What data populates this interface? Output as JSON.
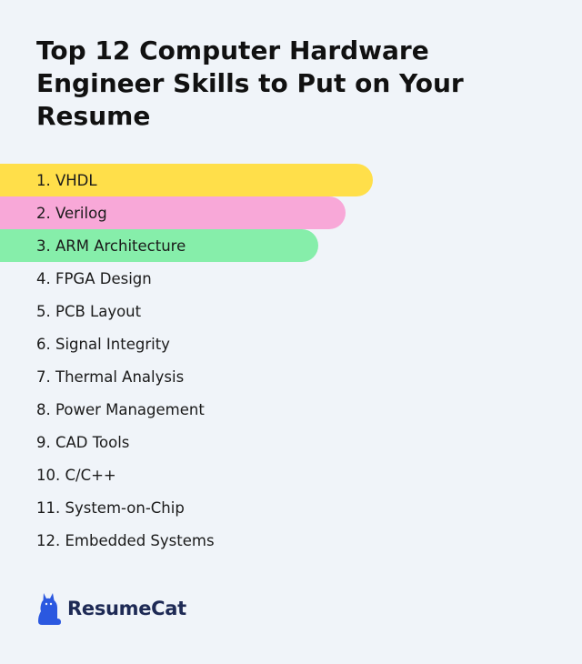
{
  "title": "Top 12 Computer Hardware Engineer Skills to Put on Your Resume",
  "skills": [
    {
      "label": "1. VHDL",
      "highlight": "#ffdf4a"
    },
    {
      "label": "2. Verilog",
      "highlight": "#f8a8d8"
    },
    {
      "label": "3. ARM Architecture",
      "highlight": "#86eeaa"
    },
    {
      "label": "4. FPGA Design",
      "highlight": null
    },
    {
      "label": "5. PCB Layout",
      "highlight": null
    },
    {
      "label": "6. Signal Integrity",
      "highlight": null
    },
    {
      "label": "7. Thermal Analysis",
      "highlight": null
    },
    {
      "label": "8. Power Management",
      "highlight": null
    },
    {
      "label": "9. CAD Tools",
      "highlight": null
    },
    {
      "label": "10. C/C++",
      "highlight": null
    },
    {
      "label": "11. System-on-Chip",
      "highlight": null
    },
    {
      "label": "12. Embedded Systems",
      "highlight": null
    }
  ],
  "brand": {
    "name": "ResumeCat",
    "icon": "cat-logo-icon",
    "color": "#2b58e0"
  }
}
